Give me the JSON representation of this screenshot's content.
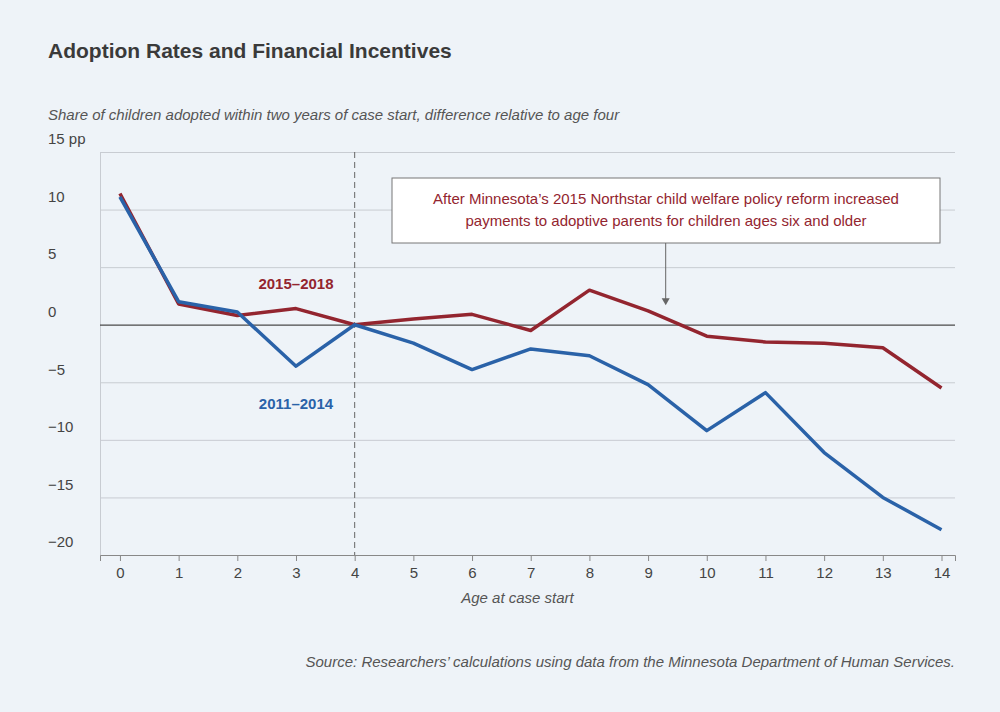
{
  "chart_data": {
    "type": "line",
    "title": "Adoption Rates and Financial Incentives",
    "subtitle": "Share of children adopted within two years of case start, difference relative to age four",
    "x_label": "Age at case start",
    "source": "Source: Researchers’ calculations using data from the Minnesota Department of Human Services.",
    "x": [
      0,
      1,
      2,
      3,
      4,
      5,
      6,
      7,
      8,
      9,
      10,
      11,
      12,
      13,
      14
    ],
    "series": [
      {
        "name": "2015–2018",
        "color": "#93252f",
        "values": [
          11.4,
          1.8,
          0.8,
          1.4,
          0,
          0.5,
          0.9,
          -0.5,
          3.0,
          1.2,
          -1.0,
          -1.5,
          -1.6,
          -2.0,
          -5.5
        ]
      },
      {
        "name": "2011–2014",
        "color": "#2a62a8",
        "values": [
          11.1,
          2.0,
          1.1,
          -3.6,
          0,
          -1.6,
          -3.9,
          -2.1,
          -2.7,
          -5.2,
          -9.2,
          -5.9,
          -11.1,
          -15.0,
          -17.8
        ]
      }
    ],
    "xlim": [
      -0.34,
      14.23
    ],
    "xticks": [
      0,
      1,
      2,
      3,
      4,
      5,
      6,
      7,
      8,
      9,
      10,
      11,
      12,
      13,
      14
    ],
    "ylim": [
      -20,
      15
    ],
    "yticks": [
      {
        "value": 15,
        "label": "15 pp"
      },
      10,
      5,
      0,
      {
        "value": -5,
        "label": "−5"
      },
      {
        "value": -10,
        "label": "−10"
      },
      {
        "value": -15,
        "label": "−15"
      },
      {
        "value": -20,
        "label": "−20"
      }
    ],
    "grid": true,
    "vline": 4,
    "annotation": {
      "text": [
        "After Minnesota’s 2015 Northstar child welfare policy reform increased",
        "payments to adoptive parents for children ages six and older"
      ],
      "x": 9.3,
      "y": 1.7
    }
  }
}
